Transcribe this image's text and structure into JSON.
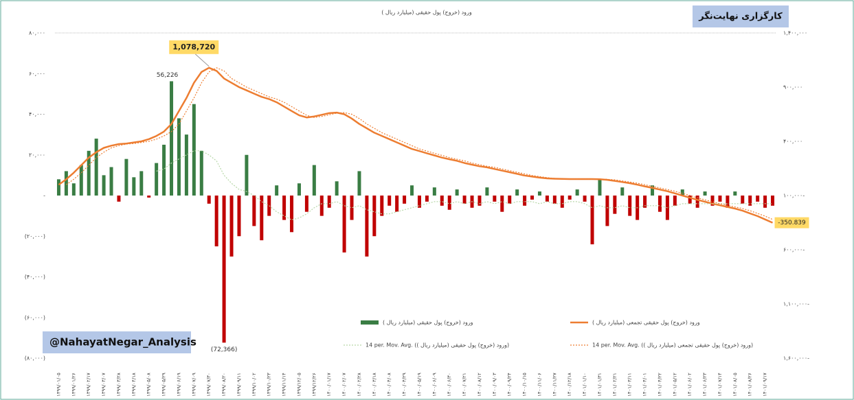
{
  "chart_data": {
    "type": "bar",
    "title": "ورود (خروج) پول حقیقی (میلیارد ریال )",
    "brand": "کارگزاری نهایت‌نگر",
    "watermark": "@NahayatNegar_Analysis",
    "categories": [
      "۱۳۹۹/۰۱/۰۵",
      null,
      "۱۳۹۹/۰۱/۲۶",
      null,
      "۱۳۹۹/۰۲/۱۷",
      null,
      "۱۳۹۹/۰۳/۰۷",
      null,
      "۱۳۹۹/۰۳/۲۸",
      null,
      "۱۳۹۹/۰۴/۱۸",
      null,
      "۱۳۹۹/۰۵/۰۸",
      null,
      "۱۳۹۹/۰۵/۲۹",
      null,
      "۱۳۹۹/۰۶/۱۹",
      null,
      "۱۳۹۹/۰۷/۰۹",
      null,
      "۱۳۹۹/۰۷/۳۰",
      null,
      "۱۳۹۹/۰۸/۲۰",
      null,
      "۱۳۹۹/۰۹/۱۱",
      null,
      "۱۳۹۹/۱۰/۰۲",
      null,
      "۱۳۹۹/۱۰/۲۳",
      null,
      "۱۳۹۹/۱۱/۱۴",
      null,
      "۱۳۹۹/۱۲/۰۵",
      null,
      "۱۳۹۹/۱۲/۲۶",
      null,
      "۱۴۰۰/۰۱/۱۷",
      null,
      "۱۴۰۰/۰۲/۰۷",
      null,
      "۱۴۰۰/۰۲/۲۸",
      null,
      "۱۴۰۰/۰۳/۱۸",
      null,
      "۱۴۰۰/۰۴/۰۸",
      null,
      "۱۴۰۰/۰۴/۲۹",
      null,
      "۱۴۰۰/۰۵/۱۹",
      null,
      "۱۴۰۰/۰۶/۰۹",
      null,
      "۱۴۰۰/۰۶/۳۰",
      null,
      "۱۴۰۰/۰۷/۲۱",
      null,
      "۱۴۰۰/۰۸/۱۲",
      null,
      "۱۴۰۰/۰۹/۰۳",
      null,
      "۱۴۰۰/۰۹/۲۴",
      null,
      "۱۴۰۰/۱۰/۱۵",
      null,
      "۱۴۰۰/۱۱/۰۶",
      null,
      "۱۴۰۰/۱۱/۲۷",
      null,
      "۱۴۰۰/۱۲/۱۸",
      null,
      "۱۴۰۱/۰۱/۱۰",
      null,
      "۱۴۰۱/۰۱/۳۱",
      null,
      "۱۴۰۱/۰۲/۲۱",
      null,
      "۱۴۰۱/۰۳/۱۱",
      null,
      "۱۴۰۱/۰۴/۰۱",
      null,
      "۱۴۰۱/۰۴/۲۲",
      null,
      "۱۴۰۱/۰۵/۱۲",
      null,
      "۱۴۰۱/۰۶/۰۲",
      null,
      "۱۴۰۱/۰۶/۲۳",
      null,
      "۱۴۰۱/۰۷/۱۴",
      null,
      "۱۴۰۱/۰۸/۰۵",
      null,
      "۱۴۰۱/۰۸/۲۶",
      null,
      "۱۴۰۱/۰۹/۱۷",
      null
    ],
    "series": [
      {
        "name": "ورود (خروج) پول حقیقی (میلیارد ریال )",
        "type": "bar",
        "color": "#3a7d44",
        "negative_color": "#c00000",
        "values": [
          8000,
          12000,
          6000,
          15000,
          22000,
          28000,
          10000,
          14000,
          -3000,
          18000,
          9000,
          12000,
          -1000,
          16000,
          25000,
          56226,
          38000,
          30000,
          45000,
          22000,
          -4000,
          -25000,
          -72366,
          -30000,
          -20000,
          20000,
          -15000,
          -22000,
          -10000,
          5000,
          -12000,
          -18000,
          6000,
          -8000,
          15000,
          -10000,
          -6000,
          7000,
          -28000,
          -12000,
          12000,
          -30000,
          -20000,
          -10000,
          -5000,
          -8000,
          -4000,
          5000,
          -6000,
          -3000,
          4000,
          -5000,
          -7000,
          3000,
          -4000,
          -6000,
          -5000,
          4000,
          -3000,
          -8000,
          -4000,
          3000,
          -5000,
          -2000,
          2000,
          -3000,
          -4000,
          -6000,
          -2000,
          3000,
          -3000,
          -24000,
          8000,
          -15000,
          -9000,
          4000,
          -10000,
          -12000,
          -6000,
          5000,
          -8000,
          -12000,
          -5000,
          3000,
          -4000,
          -6000,
          2000,
          -5000,
          -3000,
          -6000,
          2000,
          -4000,
          -5000,
          -3000,
          -6000,
          -5000
        ],
        "value_labels": [
          null,
          null,
          null,
          null,
          null,
          null,
          null,
          null,
          null,
          null,
          null,
          null,
          null,
          null,
          null,
          "56,226",
          null,
          null,
          null,
          null,
          null,
          null,
          "(72,366)",
          null,
          null,
          null,
          null,
          null,
          null,
          null,
          null,
          null,
          null,
          null,
          null,
          null,
          null,
          null,
          null,
          null,
          null,
          null,
          null,
          null,
          null,
          null,
          null,
          null,
          null,
          null,
          null,
          null,
          null,
          null,
          null,
          null,
          null,
          null,
          null,
          null,
          null,
          null,
          null,
          null,
          null,
          null,
          null,
          null,
          null,
          null,
          null,
          null,
          null,
          null,
          null,
          null,
          null,
          null,
          null,
          null,
          null,
          null,
          null,
          null,
          null,
          null,
          null,
          null,
          null,
          null,
          null,
          null,
          null,
          null,
          null,
          null
        ]
      },
      {
        "name": "ورود (خروج) پول حقیقی تجمعی (میلیارد ریال )",
        "type": "line",
        "axis": "y2",
        "color": "#ed7d31",
        "style": "solid",
        "values": [
          0,
          50000,
          110000,
          180000,
          250000,
          300000,
          340000,
          360000,
          375000,
          380000,
          390000,
          400000,
          420000,
          450000,
          490000,
          560000,
          680000,
          800000,
          940000,
          1040000,
          1078720,
          1050000,
          980000,
          940000,
          900000,
          870000,
          840000,
          810000,
          790000,
          760000,
          720000,
          680000,
          640000,
          620000,
          630000,
          645000,
          660000,
          665000,
          650000,
          610000,
          560000,
          520000,
          480000,
          450000,
          420000,
          390000,
          360000,
          330000,
          310000,
          290000,
          270000,
          250000,
          235000,
          220000,
          200000,
          185000,
          170000,
          160000,
          145000,
          130000,
          115000,
          100000,
          85000,
          75000,
          65000,
          58000,
          55000,
          53000,
          52000,
          52000,
          52000,
          52000,
          50000,
          45000,
          35000,
          25000,
          14000,
          0,
          -15000,
          -30000,
          -45000,
          -60000,
          -80000,
          -100000,
          -120000,
          -140000,
          -157000,
          -175000,
          -190000,
          -205000,
          -220000,
          -240000,
          -265000,
          -290000,
          -320000,
          -350839
        ],
        "value_labels": [
          null,
          null,
          null,
          null,
          null,
          null,
          null,
          null,
          null,
          null,
          null,
          null,
          null,
          null,
          null,
          null,
          null,
          null,
          null,
          null,
          "1,078,720",
          null,
          null,
          null,
          null,
          null,
          null,
          null,
          null,
          null,
          null,
          null,
          null,
          null,
          null,
          null,
          null,
          null,
          null,
          null,
          null,
          null,
          null,
          null,
          null,
          null,
          null,
          null,
          null,
          null,
          null,
          null,
          null,
          null,
          null,
          null,
          null,
          null,
          null,
          null,
          null,
          null,
          null,
          null,
          null,
          null,
          null,
          null,
          null,
          null,
          null,
          null,
          null,
          null,
          null,
          null,
          null,
          null,
          null,
          null,
          null,
          null,
          null,
          null,
          null,
          null,
          null,
          null,
          null,
          null,
          null,
          null,
          null,
          null,
          null,
          "-350.839"
        ]
      },
      {
        "name": "14 per. Mov. Avg. (ورود (خروج) پول حقیقی (میلیارد ریال ))",
        "type": "line",
        "color": "#b7d7a8",
        "style": "dotted",
        "values": [
          null,
          null,
          null,
          null,
          null,
          null,
          null,
          null,
          null,
          null,
          null,
          null,
          null,
          12000,
          13000,
          16000,
          18000,
          20000,
          22000,
          22000,
          20000,
          17000,
          10000,
          6000,
          3000,
          2000,
          0,
          -3000,
          -5000,
          -8000,
          -10000,
          -12000,
          -11000,
          -9000,
          -6000,
          -4000,
          -4000,
          -3000,
          -5000,
          -6000,
          -5000,
          -7000,
          -8000,
          -9000,
          -9000,
          -8000,
          -7000,
          -6000,
          -5000,
          -4000,
          -3000,
          -3000,
          -4000,
          -3000,
          -4000,
          -3000,
          -4000,
          -3000,
          -4000,
          -3000,
          -4000,
          -3000,
          -3000,
          -3000,
          -4000,
          -3000,
          -4000,
          -4000,
          -3000,
          -3000,
          -4000,
          -6000,
          -5000,
          -6000,
          -6000,
          -5000,
          -6000,
          -6000,
          -5000,
          -5000,
          -5000,
          -6000,
          -5000,
          -4000,
          -4000,
          -4000,
          -4000,
          -4000,
          -4000,
          -4000,
          -4000,
          -4000,
          -4000,
          -4000,
          -4000,
          -4000
        ]
      },
      {
        "name": "14 per. Mov. Avg. (ورود (خروج) پول حقیقی تجمعی (میلیارد ریال ))",
        "type": "line",
        "axis": "y2",
        "color": "#ed7d31",
        "style": "dotted",
        "values": [
          null,
          0,
          50000,
          110000,
          180000,
          250000,
          300000,
          340000,
          360000,
          375000,
          380000,
          390000,
          400000,
          420000,
          450000,
          490000,
          560000,
          680000,
          800000,
          940000,
          1040000,
          1078720,
          1050000,
          980000,
          940000,
          900000,
          870000,
          840000,
          810000,
          790000,
          760000,
          720000,
          680000,
          640000,
          620000,
          630000,
          645000,
          660000,
          665000,
          650000,
          610000,
          560000,
          520000,
          480000,
          450000,
          420000,
          390000,
          360000,
          330000,
          310000,
          290000,
          270000,
          250000,
          235000,
          220000,
          200000,
          185000,
          170000,
          160000,
          145000,
          130000,
          115000,
          100000,
          85000,
          75000,
          65000,
          58000,
          55000,
          53000,
          52000,
          52000,
          52000,
          52000,
          50000,
          45000,
          35000,
          25000,
          14000,
          0,
          -15000,
          -30000,
          -45000,
          -60000,
          -80000,
          -100000,
          -120000,
          -140000,
          -157000,
          -175000,
          -190000,
          -205000,
          -220000,
          -240000,
          -265000,
          -290000,
          -320000
        ]
      }
    ],
    "ylim": [
      -80000,
      80000
    ],
    "yticks": [
      {
        "value": 80000,
        "label": "۸۰,۰۰۰"
      },
      {
        "value": 60000,
        "label": "۶۰,۰۰۰"
      },
      {
        "value": 40000,
        "label": "۴۰,۰۰۰"
      },
      {
        "value": 20000,
        "label": "۲۰,۰۰۰"
      },
      {
        "value": 0,
        "label": "-"
      },
      {
        "value": -20000,
        "label": "(۲۰,۰۰۰)"
      },
      {
        "value": -40000,
        "label": "(۴۰,۰۰۰)"
      },
      {
        "value": -60000,
        "label": "(۶۰,۰۰۰)"
      },
      {
        "value": -80000,
        "label": "(۸۰,۰۰۰)"
      }
    ],
    "y2lim": [
      -1600000,
      1400000
    ],
    "y2ticks": [
      {
        "value": 1400000,
        "label": "۱,۴۰۰,۰۰۰"
      },
      {
        "value": 900000,
        "label": "۹۰۰,۰۰۰"
      },
      {
        "value": 400000,
        "label": "۴۰۰,۰۰۰"
      },
      {
        "value": -100000,
        "label": "۱۰۰,۰۰۰-"
      },
      {
        "value": -600000,
        "label": "۶۰۰,۰۰۰-"
      },
      {
        "value": -1100000,
        "label": "۱,۱۰۰,۰۰۰-"
      },
      {
        "value": -1600000,
        "label": "۱,۶۰۰,۰۰۰-"
      }
    ],
    "grid": false,
    "legend": "bottom"
  }
}
